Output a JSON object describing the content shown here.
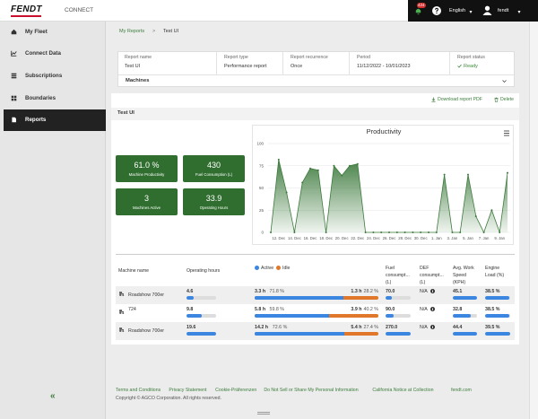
{
  "header": {
    "logo": "FENDT",
    "app": "CONNECT",
    "notifications": "424",
    "language": "English",
    "user": "fendt"
  },
  "sidebar": {
    "items": [
      "My Fleet",
      "Connect Data",
      "Subscriptions",
      "Boundaries",
      "Reports"
    ],
    "collapse": "«"
  },
  "breadcrumb": {
    "items": [
      "My Reports",
      "Test UI"
    ],
    "separator": ">"
  },
  "report": {
    "fields": [
      {
        "label": "Report name",
        "value": "Test UI"
      },
      {
        "label": "Report type",
        "value": "Performance report"
      },
      {
        "label": "Report recurrence",
        "value": "Once"
      },
      {
        "label": "Period",
        "value": "11/12/2022 - 10/01/2023"
      },
      {
        "label": "Report status",
        "value": "Ready"
      }
    ],
    "machines": "Machines"
  },
  "actions": [
    "Download report PDF",
    "Delete"
  ],
  "section_title": "Test UI",
  "kpis": [
    {
      "value": "61.0 %",
      "label": "Machine Productivity"
    },
    {
      "value": "430",
      "label": "Fuel Consumption (L)"
    },
    {
      "value": "3",
      "label": "Machines Active"
    },
    {
      "value": "33.9",
      "label": "Operating Hours"
    }
  ],
  "chart_data": {
    "type": "area",
    "title": "Productivity",
    "color": "#3d7a3d",
    "categories": [
      null,
      "12. Dec",
      null,
      "14. Dec",
      null,
      "16. Dec",
      null,
      "18. Dec",
      null,
      "20. Dec",
      null,
      "22. Dec",
      null,
      "24. Dec",
      null,
      "26. Dec",
      null,
      "28. Dec",
      null,
      "30. Dec",
      null,
      "1. Jan",
      null,
      "3. Jan",
      null,
      "5. Jan",
      null,
      "7. Jan",
      null,
      "9. Jan",
      null
    ],
    "values": [
      0,
      82,
      45,
      0,
      56,
      72,
      70,
      0,
      75,
      64,
      75,
      77,
      0,
      0,
      0,
      0,
      0,
      0,
      0,
      0,
      0,
      0,
      65,
      0,
      0,
      65,
      18,
      0,
      25,
      0,
      67
    ],
    "ylim": [
      0,
      100
    ],
    "yticks": [
      0,
      25,
      50,
      75,
      100
    ],
    "grid": true
  },
  "table": {
    "headers": [
      "Machine name",
      "Operating hours",
      "Fuel consumpt... (L)",
      "DEF consumpt... (L)",
      "Avg. Work Speed (KPH)",
      "Engine Load (%)"
    ],
    "legend": [
      "Active",
      "Idle"
    ],
    "rows": [
      [
        "Roadshow 700er",
        "4.6",
        "3.3 h",
        "71.8 %",
        "1.3 h",
        "28.2 %",
        "70.0",
        "N/A",
        "45.1",
        "38.5 %"
      ],
      [
        "724",
        "9.8",
        "5.8 h",
        "59.8 %",
        "3.9 h",
        "40.2 %",
        "90.0",
        "N/A",
        "32.8",
        "38.5 %"
      ],
      [
        "Roadshow 700er",
        "19.6",
        "14.2 h",
        "72.6 %",
        "5.4 h",
        "27.4 %",
        "270.0",
        "N/A",
        "44.4",
        "39.5 %"
      ]
    ]
  },
  "footer": {
    "links": [
      "Terms and Conditions",
      "Privacy Statement",
      "Cookie-Präferenzen",
      "Do Not Sell or Share My Personal Information",
      "California Notice at Collection",
      "fendt.com"
    ],
    "copyright": "Copyright © AGCO Corporation. All rights reserved."
  }
}
